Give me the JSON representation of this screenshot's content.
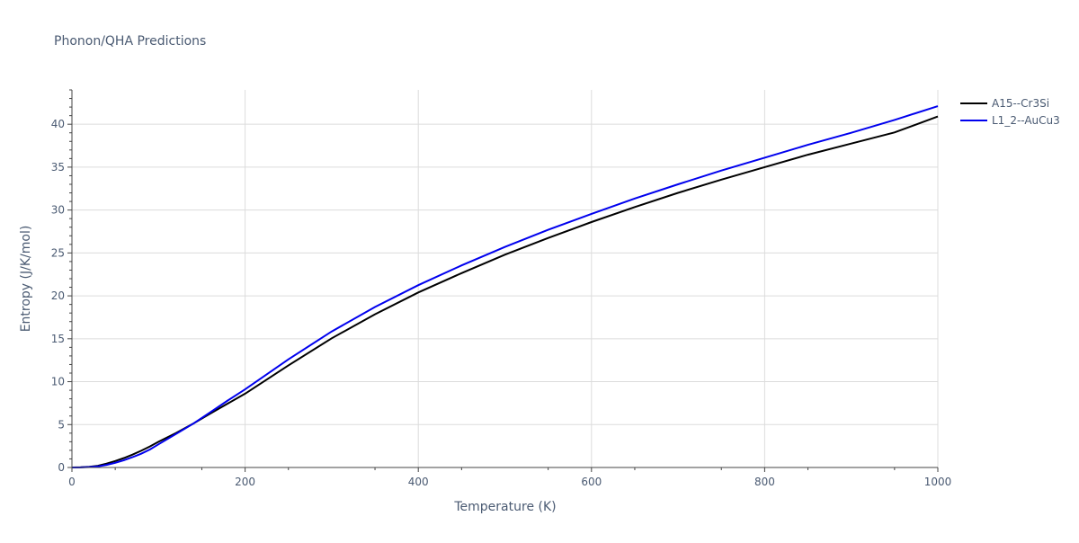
{
  "chart_data": {
    "type": "line",
    "title": "Phonon/QHA Predictions",
    "xlabel": "Temperature (K)",
    "ylabel": "Entropy (J/K/mol)",
    "xlim": [
      0,
      1000
    ],
    "ylim": [
      0,
      44
    ],
    "xticks": [
      0,
      200,
      400,
      600,
      800,
      1000
    ],
    "yticks": [
      0,
      5,
      10,
      15,
      20,
      25,
      30,
      35,
      40
    ],
    "grid": true,
    "legend_position": "top-right",
    "x": [
      0,
      10,
      20,
      30,
      40,
      50,
      60,
      70,
      80,
      90,
      100,
      120,
      140,
      160,
      180,
      200,
      250,
      300,
      350,
      400,
      450,
      500,
      550,
      600,
      650,
      700,
      750,
      800,
      850,
      900,
      950,
      1000
    ],
    "series": [
      {
        "name": "A15--Cr3Si",
        "color": "#000000",
        "values": [
          0,
          0.02,
          0.08,
          0.2,
          0.45,
          0.75,
          1.1,
          1.5,
          1.95,
          2.45,
          3.0,
          4.0,
          5.1,
          6.3,
          7.45,
          8.6,
          11.9,
          15.05,
          17.85,
          20.4,
          22.65,
          24.8,
          26.75,
          28.6,
          30.35,
          32.0,
          33.55,
          35.0,
          36.45,
          37.75,
          39.05,
          40.9
        ]
      },
      {
        "name": "L1_2--AuCu3",
        "color": "#0000ee",
        "values": [
          0,
          0.01,
          0.05,
          0.13,
          0.3,
          0.55,
          0.85,
          1.2,
          1.6,
          2.1,
          2.7,
          3.9,
          5.1,
          6.45,
          7.8,
          9.1,
          12.6,
          15.85,
          18.7,
          21.25,
          23.55,
          25.7,
          27.7,
          29.55,
          31.35,
          33.0,
          34.6,
          36.1,
          37.6,
          39.0,
          40.5,
          42.1
        ]
      }
    ]
  }
}
